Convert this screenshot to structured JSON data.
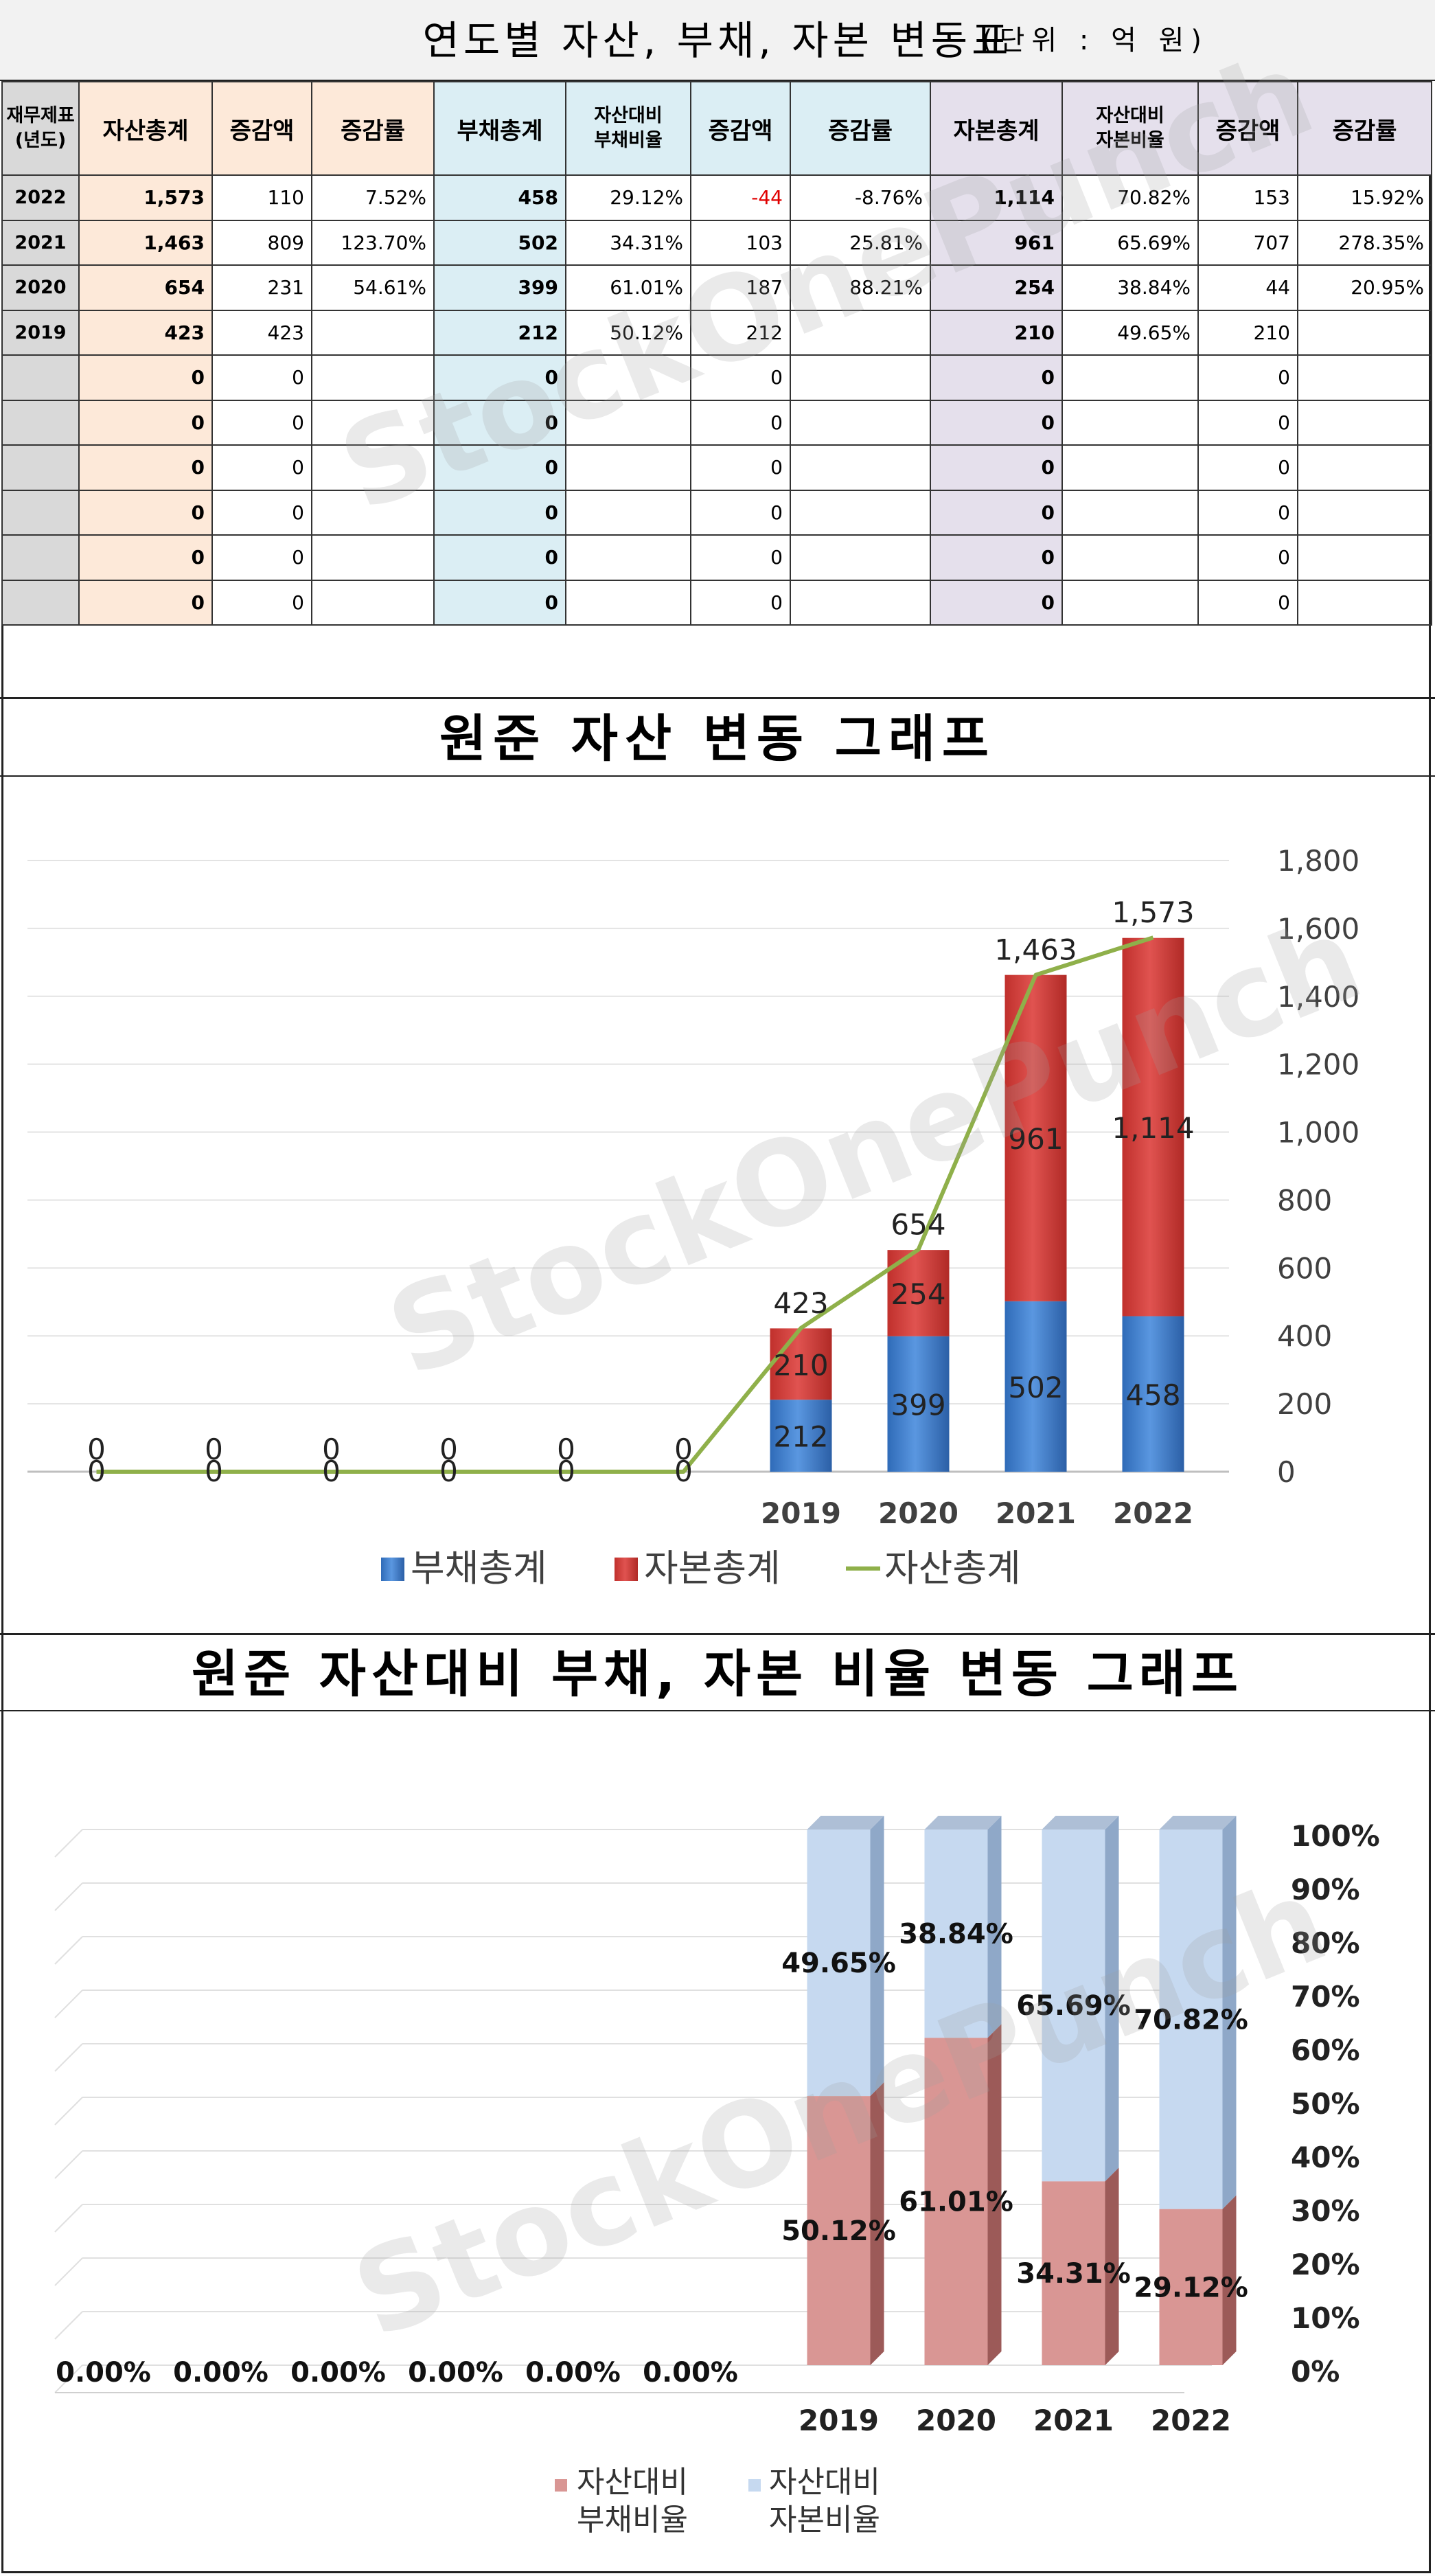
{
  "table_title": "연도별 자산, 부채, 자본 변동표",
  "table_unit": "(단위 : 억 원)",
  "table": {
    "headers": [
      "재무제표\n(년도)",
      "자산총계",
      "증감액",
      "증감률",
      "부채총계",
      "자산대비\n부채비율",
      "증감액",
      "증감률",
      "자본총계",
      "자산대비\n자본비율",
      "증감액",
      "증감률"
    ],
    "rows": [
      [
        "2022",
        "1,573",
        "110",
        "7.52%",
        "458",
        "29.12%",
        "-44",
        "-8.76%",
        "1,114",
        "70.82%",
        "153",
        "15.92%"
      ],
      [
        "2021",
        "1,463",
        "809",
        "123.70%",
        "502",
        "34.31%",
        "103",
        "25.81%",
        "961",
        "65.69%",
        "707",
        "278.35%"
      ],
      [
        "2020",
        "654",
        "231",
        "54.61%",
        "399",
        "61.01%",
        "187",
        "88.21%",
        "254",
        "38.84%",
        "44",
        "20.95%"
      ],
      [
        "2019",
        "423",
        "423",
        "",
        "212",
        "50.12%",
        "212",
        "",
        "210",
        "49.65%",
        "210",
        ""
      ],
      [
        "",
        "0",
        "0",
        "",
        "0",
        "",
        "0",
        "",
        "0",
        "",
        "0",
        ""
      ],
      [
        "",
        "0",
        "0",
        "",
        "0",
        "",
        "0",
        "",
        "0",
        "",
        "0",
        ""
      ],
      [
        "",
        "0",
        "0",
        "",
        "0",
        "",
        "0",
        "",
        "0",
        "",
        "0",
        ""
      ],
      [
        "",
        "0",
        "0",
        "",
        "0",
        "",
        "0",
        "",
        "0",
        "",
        "0",
        ""
      ],
      [
        "",
        "0",
        "0",
        "",
        "0",
        "",
        "0",
        "",
        "0",
        "",
        "0",
        ""
      ],
      [
        "",
        "0",
        "0",
        "",
        "0",
        "",
        "0",
        "",
        "0",
        "",
        "0",
        ""
      ]
    ]
  },
  "chart1_title": "원준 자산 변동 그래프",
  "chart2_title": "원준 자산대비 부채, 자본 비율 변동 그래프",
  "watermark": "StockOnePunch",
  "colors": {
    "debt": "#3f7fcf",
    "equity": "#d63a36",
    "asset_line": "#8fb04a",
    "ratio_debt": "#d99694",
    "ratio_equity": "#c6d9f0"
  },
  "chart_data": [
    {
      "type": "bar",
      "stacked": true,
      "title": "원준 자산 변동 그래프",
      "categories": [
        "",
        "",
        "",
        "",
        "",
        "",
        "2019",
        "2020",
        "2021",
        "2022"
      ],
      "series": [
        {
          "name": "부채총계",
          "type": "bar",
          "values": [
            0,
            0,
            0,
            0,
            0,
            0,
            212,
            399,
            502,
            458
          ]
        },
        {
          "name": "자본총계",
          "type": "bar",
          "values": [
            0,
            0,
            0,
            0,
            0,
            0,
            210,
            254,
            961,
            1114
          ]
        },
        {
          "name": "자산총계",
          "type": "line",
          "values": [
            0,
            0,
            0,
            0,
            0,
            0,
            423,
            654,
            1463,
            1573
          ]
        }
      ],
      "y_ticks": [
        "0",
        "200",
        "400",
        "600",
        "800",
        "1,000",
        "1,200",
        "1,400",
        "1,600",
        "1,800"
      ],
      "bar_labels_debt": [
        "0",
        "0",
        "0",
        "0",
        "0",
        "0",
        "212",
        "399",
        "502",
        "458"
      ],
      "bar_labels_equity": [
        "",
        "",
        "",
        "",
        "",
        "",
        "210",
        "254",
        "961",
        "1,114"
      ],
      "line_labels": [
        "0",
        "0",
        "0",
        "0",
        "0",
        "0",
        "423",
        "654",
        "1,463",
        "1,573"
      ],
      "ylim": [
        0,
        1800
      ],
      "y_axis_side": "right",
      "legend": "bottom",
      "grid": true
    },
    {
      "type": "bar",
      "stacked": true,
      "percent": true,
      "title": "원준 자산대비 부채, 자본 비율 변동 그래프",
      "categories": [
        "",
        "",
        "",
        "",
        "",
        "",
        "2019",
        "2020",
        "2021",
        "2022"
      ],
      "series": [
        {
          "name": "자산대비 부채비율",
          "values": [
            0,
            0,
            0,
            0,
            0,
            0,
            50.12,
            61.01,
            34.31,
            29.12
          ]
        },
        {
          "name": "자산대비 자본비율",
          "values": [
            0,
            0,
            0,
            0,
            0,
            0,
            49.65,
            38.84,
            65.69,
            70.82
          ]
        }
      ],
      "legend_debt_lines": [
        "자산대비",
        "부채비율"
      ],
      "legend_equity_lines": [
        "자산대비",
        "자본비율"
      ],
      "debt_labels": [
        "0.00%",
        "0.00%",
        "0.00%",
        "0.00%",
        "0.00%",
        "0.00%",
        "50.12%",
        "61.01%",
        "34.31%",
        "29.12%"
      ],
      "equity_labels": [
        "",
        "",
        "",
        "",
        "",
        "",
        "49.65%",
        "38.84%",
        "65.69%",
        "70.82%"
      ],
      "y_ticks": [
        "0%",
        "10%",
        "20%",
        "30%",
        "40%",
        "50%",
        "60%",
        "70%",
        "80%",
        "90%",
        "100%"
      ],
      "ylim": [
        0,
        100
      ],
      "y_axis_side": "right",
      "legend": "bottom",
      "grid": true
    }
  ]
}
